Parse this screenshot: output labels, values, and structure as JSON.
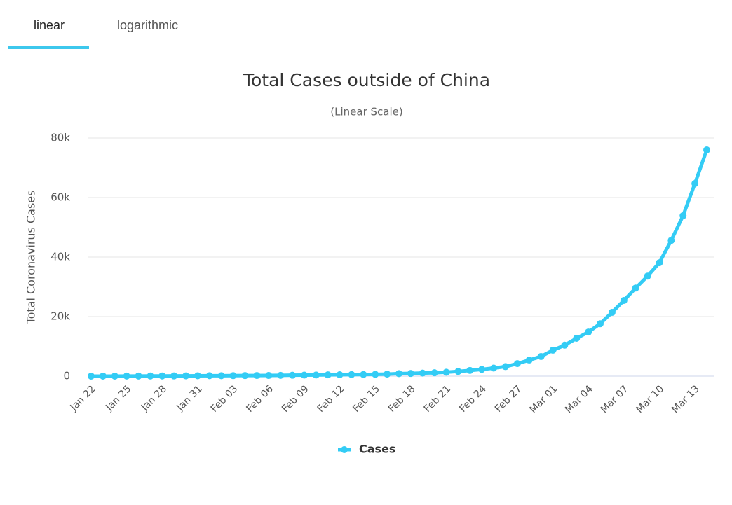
{
  "tabs": [
    "linear",
    "logarithmic"
  ],
  "chart_data": {
    "type": "line",
    "title": "Total Cases outside of China",
    "subtitle": "(Linear Scale)",
    "y_label": "Total Coronavirus Cases",
    "categories": [
      "Jan 22",
      null,
      null,
      "Jan 25",
      null,
      null,
      "Jan 28",
      null,
      null,
      "Jan 31",
      null,
      null,
      "Feb 03",
      null,
      null,
      "Feb 06",
      null,
      null,
      "Feb 09",
      null,
      null,
      "Feb 12",
      null,
      null,
      "Feb 15",
      null,
      null,
      "Feb 18",
      null,
      null,
      "Feb 21",
      null,
      null,
      "Feb 24",
      null,
      null,
      "Feb 27",
      null,
      null,
      "Mar 01",
      null,
      null,
      "Mar 04",
      null,
      null,
      "Mar 07",
      null,
      null,
      "Mar 10",
      null,
      null,
      "Mar 13",
      null
    ],
    "series": [
      {
        "name": "Cases",
        "color": "#33ccf5",
        "values": [
          6,
          12,
          14,
          26,
          44,
          52,
          68,
          79,
          93,
          123,
          143,
          153,
          168,
          194,
          215,
          228,
          279,
          317,
          342,
          386,
          440,
          473,
          533,
          555,
          606,
          690,
          845,
          904,
          1026,
          1139,
          1326,
          1590,
          1921,
          2272,
          2702,
          3196,
          4200,
          5400,
          6600,
          8700,
          10400,
          12700,
          14800,
          17600,
          21400,
          25400,
          29600,
          33600,
          38100,
          45600,
          53900,
          64700,
          76000
        ]
      }
    ],
    "ylim": [
      0,
      80000
    ],
    "yticks": [
      0,
      {
        "value": 20000,
        "label": "20k"
      },
      {
        "value": 40000,
        "label": "40k"
      },
      {
        "value": 60000,
        "label": "60k"
      },
      {
        "value": 80000,
        "label": "80k"
      }
    ],
    "grid": true
  }
}
